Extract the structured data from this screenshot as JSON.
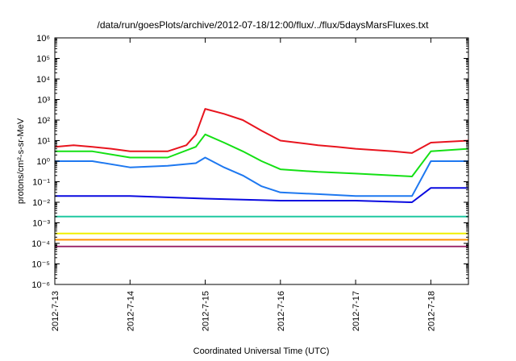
{
  "chart_data": {
    "type": "line",
    "title": "/data/run/goesPlots/archive/2012-07-18/12:00/flux/../flux/5daysMarsFluxes.txt",
    "xlabel": "Coordinated Universal Time (UTC)",
    "ylabel": "protons/cm²-s-sr-MeV",
    "yscale": "log",
    "ylim_exponents": [
      -6,
      6
    ],
    "xlim": [
      "2012-07-13",
      "2012-07-18 12:00"
    ],
    "x_ticks": [
      "2012-7-13",
      "2012-7-14",
      "2012-7-15",
      "2012-7-16",
      "2012-7-17",
      "2012-7-18"
    ],
    "y_ticks": [
      "10⁻⁶",
      "10⁻⁵",
      "10⁻⁴",
      "10⁻³",
      "10⁻²",
      "10⁻¹",
      "10⁰",
      "10¹",
      "10²",
      "10³",
      "10⁴",
      "10⁵",
      "10⁶"
    ],
    "grid": false,
    "legend": "none",
    "series": [
      {
        "color": "#e8141e",
        "values": [
          [
            "2012-07-13 00:00",
            5
          ],
          [
            "2012-07-13 06:00",
            6
          ],
          [
            "2012-07-13 12:00",
            5
          ],
          [
            "2012-07-13 18:00",
            4
          ],
          [
            "2012-07-14 00:00",
            3
          ],
          [
            "2012-07-14 12:00",
            3
          ],
          [
            "2012-07-14 18:00",
            6
          ],
          [
            "2012-07-14 21:00",
            20
          ],
          [
            "2012-07-15 00:00",
            350
          ],
          [
            "2012-07-15 06:00",
            200
          ],
          [
            "2012-07-15 12:00",
            100
          ],
          [
            "2012-07-15 18:00",
            30
          ],
          [
            "2012-07-16 00:00",
            10
          ],
          [
            "2012-07-16 12:00",
            6
          ],
          [
            "2012-07-16 18:00",
            5
          ],
          [
            "2012-07-17 00:00",
            4
          ],
          [
            "2012-07-17 12:00",
            3
          ],
          [
            "2012-07-17 18:00",
            2.5
          ],
          [
            "2012-07-18 00:00",
            8
          ],
          [
            "2012-07-18 12:00",
            10
          ]
        ]
      },
      {
        "color": "#14e014",
        "values": [
          [
            "2012-07-13 00:00",
            3
          ],
          [
            "2012-07-13 12:00",
            3
          ],
          [
            "2012-07-14 00:00",
            1.5
          ],
          [
            "2012-07-14 12:00",
            1.5
          ],
          [
            "2012-07-14 21:00",
            5
          ],
          [
            "2012-07-15 00:00",
            20
          ],
          [
            "2012-07-15 06:00",
            8
          ],
          [
            "2012-07-15 12:00",
            3
          ],
          [
            "2012-07-15 18:00",
            1
          ],
          [
            "2012-07-16 00:00",
            0.4
          ],
          [
            "2012-07-16 12:00",
            0.3
          ],
          [
            "2012-07-17 00:00",
            0.25
          ],
          [
            "2012-07-17 18:00",
            0.18
          ],
          [
            "2012-07-18 00:00",
            3
          ],
          [
            "2012-07-18 12:00",
            4
          ]
        ]
      },
      {
        "color": "#1e78f0",
        "values": [
          [
            "2012-07-13 00:00",
            1
          ],
          [
            "2012-07-13 12:00",
            1
          ],
          [
            "2012-07-14 00:00",
            0.5
          ],
          [
            "2012-07-14 12:00",
            0.6
          ],
          [
            "2012-07-14 21:00",
            0.8
          ],
          [
            "2012-07-15 00:00",
            1.5
          ],
          [
            "2012-07-15 06:00",
            0.5
          ],
          [
            "2012-07-15 12:00",
            0.2
          ],
          [
            "2012-07-15 18:00",
            0.06
          ],
          [
            "2012-07-16 00:00",
            0.03
          ],
          [
            "2012-07-16 12:00",
            0.025
          ],
          [
            "2012-07-17 00:00",
            0.02
          ],
          [
            "2012-07-17 18:00",
            0.02
          ],
          [
            "2012-07-18 00:00",
            1
          ],
          [
            "2012-07-18 12:00",
            1
          ]
        ]
      },
      {
        "color": "#0a0ae0",
        "values": [
          [
            "2012-07-13 00:00",
            0.02
          ],
          [
            "2012-07-14 00:00",
            0.02
          ],
          [
            "2012-07-15 00:00",
            0.015
          ],
          [
            "2012-07-16 00:00",
            0.012
          ],
          [
            "2012-07-17 00:00",
            0.012
          ],
          [
            "2012-07-17 18:00",
            0.01
          ],
          [
            "2012-07-18 00:00",
            0.05
          ],
          [
            "2012-07-18 12:00",
            0.05
          ]
        ]
      },
      {
        "color": "#20c8a0",
        "values": [
          [
            "2012-07-13 00:00",
            0.002
          ],
          [
            "2012-07-14 00:00",
            0.002
          ],
          [
            "2012-07-15 00:00",
            0.002
          ],
          [
            "2012-07-16 00:00",
            0.002
          ],
          [
            "2012-07-17 00:00",
            0.002
          ],
          [
            "2012-07-18 00:00",
            0.002
          ],
          [
            "2012-07-18 12:00",
            0.002
          ]
        ]
      },
      {
        "color": "#f0f000",
        "values": [
          [
            "2012-07-13 00:00",
            0.0003
          ],
          [
            "2012-07-14 00:00",
            0.0003
          ],
          [
            "2012-07-15 00:00",
            0.0003
          ],
          [
            "2012-07-16 00:00",
            0.0003
          ],
          [
            "2012-07-17 00:00",
            0.0003
          ],
          [
            "2012-07-18 00:00",
            0.0003
          ],
          [
            "2012-07-18 12:00",
            0.0003
          ]
        ]
      },
      {
        "color": "#ff9000",
        "values": [
          [
            "2012-07-13 00:00",
            0.00015
          ],
          [
            "2012-07-14 00:00",
            0.00015
          ],
          [
            "2012-07-15 00:00",
            0.00015
          ],
          [
            "2012-07-16 00:00",
            0.00015
          ],
          [
            "2012-07-17 00:00",
            0.00015
          ],
          [
            "2012-07-18 00:00",
            0.00015
          ],
          [
            "2012-07-18 12:00",
            0.00015
          ]
        ]
      },
      {
        "color": "#a03070",
        "values": [
          [
            "2012-07-13 00:00",
            7e-05
          ],
          [
            "2012-07-14 00:00",
            7e-05
          ],
          [
            "2012-07-15 00:00",
            7e-05
          ],
          [
            "2012-07-16 00:00",
            7e-05
          ],
          [
            "2012-07-17 00:00",
            7e-05
          ],
          [
            "2012-07-18 00:00",
            7e-05
          ],
          [
            "2012-07-18 12:00",
            7e-05
          ]
        ]
      }
    ]
  }
}
